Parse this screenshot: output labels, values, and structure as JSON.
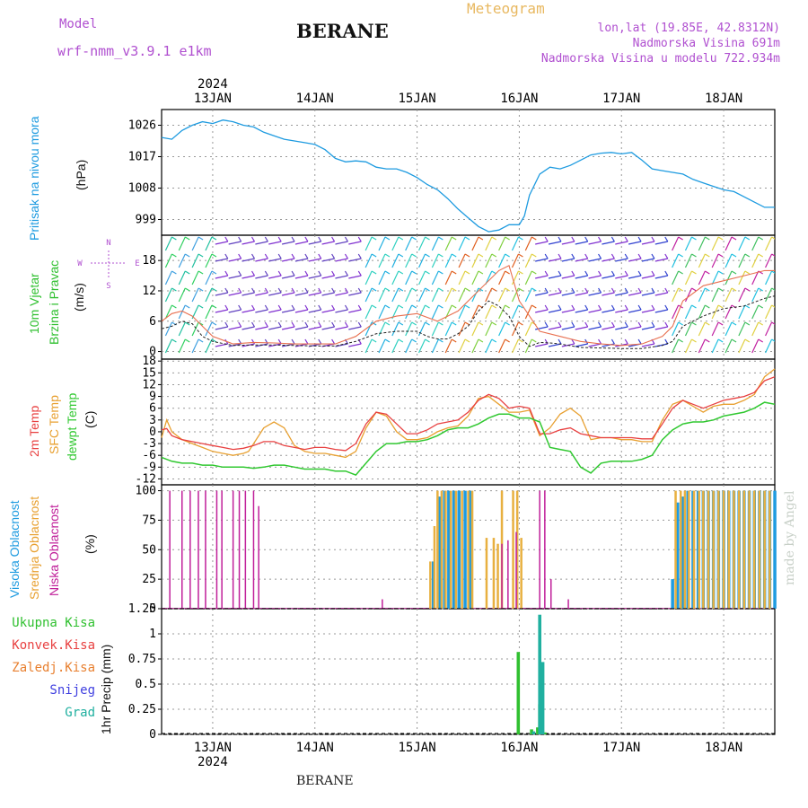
{
  "header": {
    "model_label": "Model",
    "model_name": "wrf-nmm_v3.9.1 e1km",
    "station": "BERANE",
    "product": "Meteogram",
    "coords": "lon,lat (19.85E, 42.8312N)",
    "elevation": "Nadmorska Visina 691m",
    "model_elevation": "Nadmorska Visina u modelu 722.934m"
  },
  "footer": {
    "station": "BERANE",
    "credit": "made by Angel"
  },
  "time_axis": {
    "year": "2024",
    "days": [
      "13JAN",
      "14JAN",
      "15JAN",
      "16JAN",
      "17JAN",
      "18JAN"
    ],
    "start_day": 12.5,
    "end_day": 18.5
  },
  "colors": {
    "pressure": "#1e9be0",
    "temp2m": "#e84040",
    "sfc_temp": "#e8a030",
    "dewpt": "#30c830",
    "high_cloud": "#1e9be0",
    "mid_cloud": "#e8b040",
    "low_cloud": "#c0209a",
    "total_rain": "#30c030",
    "grad": "#20b0a0",
    "wind_speed": "#222222",
    "gust": "#e87050"
  },
  "chart_data": [
    {
      "type": "line",
      "id": "pressure",
      "ylabel_lines": [
        "Pritisak na nivou mora",
        "(hPa)"
      ],
      "yticks": [
        999,
        1008,
        1017,
        1026
      ],
      "ylim": [
        994.5,
        1030.5
      ],
      "series": [
        {
          "key": "pressure",
          "x": [
            12.5,
            12.6,
            12.7,
            12.8,
            12.9,
            13.0,
            13.1,
            13.2,
            13.3,
            13.4,
            13.5,
            13.6,
            13.7,
            13.8,
            13.9,
            14.0,
            14.1,
            14.2,
            14.3,
            14.4,
            14.5,
            14.6,
            14.7,
            14.8,
            14.9,
            15.0,
            15.1,
            15.2,
            15.3,
            15.4,
            15.5,
            15.6,
            15.7,
            15.8,
            15.9,
            16.0,
            16.05,
            16.1,
            16.2,
            16.3,
            16.4,
            16.5,
            16.6,
            16.7,
            16.8,
            16.9,
            17.0,
            17.1,
            17.2,
            17.3,
            17.4,
            17.5,
            17.6,
            17.7,
            17.8,
            17.9,
            18.0,
            18.1,
            18.2,
            18.3,
            18.4,
            18.5
          ],
          "y": [
            1022.5,
            1022,
            1024.5,
            1026,
            1027,
            1026.5,
            1027.5,
            1027,
            1026,
            1025.5,
            1024,
            1023,
            1022,
            1021.5,
            1021,
            1020.5,
            1019,
            1016.5,
            1015.5,
            1015.8,
            1015.5,
            1014,
            1013.5,
            1013.5,
            1012.5,
            1011,
            1009,
            1007.5,
            1005,
            1002,
            999.5,
            997,
            995.5,
            996,
            997.5,
            997.5,
            1000,
            1006,
            1012,
            1014,
            1013.5,
            1014.5,
            1016,
            1017.5,
            1018,
            1018.2,
            1017.8,
            1018.2,
            1016,
            1013.5,
            1013,
            1012.5,
            1012,
            1010.5,
            1009.5,
            1008.5,
            1007.5,
            1007,
            1005.5,
            1004,
            1002.5,
            1002.5
          ]
        }
      ]
    },
    {
      "type": "scatter",
      "id": "wind",
      "ylabel_lines": [
        "10m Vjetar",
        "Brzina i Pravac",
        "(m/s)"
      ],
      "compass": [
        "N",
        "E",
        "S",
        "W"
      ],
      "yticks": [
        0,
        6,
        12,
        18
      ],
      "ylim": [
        -1.5,
        23
      ],
      "series": [
        {
          "key": "wind_speed",
          "x": [
            12.5,
            12.6,
            12.7,
            12.8,
            12.9,
            13.0,
            13.2,
            13.4,
            13.6,
            13.8,
            14.0,
            14.2,
            14.4,
            14.6,
            14.8,
            15.0,
            15.1,
            15.2,
            15.3,
            15.4,
            15.5,
            15.6,
            15.7,
            15.8,
            15.9,
            16.0,
            16.1,
            16.2,
            16.3,
            16.4,
            16.6,
            16.8,
            17.0,
            17.2,
            17.4,
            17.5,
            17.6,
            17.8,
            18.0,
            18.2,
            18.4,
            18.5
          ],
          "y": [
            4.5,
            5,
            6,
            5.5,
            3,
            2,
            1.2,
            1.3,
            1.3,
            1.2,
            1.1,
            1.1,
            2,
            3.5,
            4,
            4,
            3,
            2.5,
            2.5,
            3.5,
            5,
            8,
            10,
            9,
            7,
            3,
            1,
            1.8,
            1.7,
            1.5,
            0.8,
            0.7,
            0.6,
            0.6,
            1.2,
            2,
            5,
            7,
            8.5,
            9,
            10.5,
            11
          ]
        },
        {
          "key": "gust",
          "x": [
            12.5,
            12.6,
            12.7,
            12.8,
            12.9,
            13.0,
            13.2,
            13.4,
            13.6,
            13.8,
            14.0,
            14.2,
            14.4,
            14.6,
            14.8,
            15.0,
            15.2,
            15.4,
            15.6,
            15.8,
            15.9,
            16.0,
            16.2,
            16.4,
            16.6,
            16.8,
            17.0,
            17.2,
            17.4,
            17.5,
            17.6,
            17.8,
            18.0,
            18.2,
            18.4,
            18.5
          ],
          "y": [
            6,
            7.5,
            8,
            7,
            5,
            3,
            1.5,
            1.8,
            1.7,
            1.5,
            1.5,
            1.5,
            3,
            6,
            7,
            7.5,
            6,
            8,
            12,
            16,
            17,
            10,
            4,
            3,
            2,
            1.5,
            1.2,
            1.5,
            3,
            5,
            10,
            13,
            14,
            15,
            16,
            16
          ]
        }
      ]
    },
    {
      "type": "line",
      "id": "temperature",
      "ylabel_lines": [
        "2m Temp",
        "SFC Temp",
        "dewpt Temp",
        "(C)"
      ],
      "yticks": [
        -12,
        -9,
        -6,
        -3,
        0,
        3,
        6,
        9,
        12,
        15,
        18
      ],
      "ylim": [
        -13.5,
        18.5
      ],
      "series": [
        {
          "key": "temp2m",
          "x": [
            12.5,
            12.55,
            12.6,
            12.7,
            12.8,
            12.9,
            13.0,
            13.1,
            13.2,
            13.3,
            13.4,
            13.5,
            13.6,
            13.7,
            13.8,
            13.9,
            14.0,
            14.1,
            14.2,
            14.3,
            14.4,
            14.5,
            14.6,
            14.7,
            14.8,
            14.9,
            15.0,
            15.1,
            15.2,
            15.3,
            15.4,
            15.5,
            15.6,
            15.7,
            15.8,
            15.9,
            16.0,
            16.1,
            16.2,
            16.3,
            16.4,
            16.5,
            16.6,
            16.7,
            16.8,
            16.9,
            17.0,
            17.1,
            17.2,
            17.3,
            17.4,
            17.5,
            17.6,
            17.7,
            17.8,
            17.9,
            18.0,
            18.1,
            18.2,
            18.3,
            18.4,
            18.5
          ],
          "y": [
            0.5,
            0.8,
            -1,
            -2,
            -2.5,
            -3,
            -3.5,
            -4,
            -4.5,
            -4.2,
            -3.5,
            -2.5,
            -2.5,
            -3.5,
            -4,
            -4.5,
            -4,
            -4,
            -4.5,
            -4.8,
            -3,
            2,
            5,
            4.5,
            2,
            -0.5,
            -0.5,
            0.5,
            2,
            2.5,
            3,
            5,
            8,
            9.5,
            8.5,
            6,
            6.5,
            6,
            -0.5,
            -0.5,
            0.5,
            1,
            -0.5,
            -1,
            -1.5,
            -1.5,
            -1.5,
            -1.5,
            -1.8,
            -1.8,
            2,
            6,
            8,
            7,
            6,
            7,
            8,
            8.5,
            9,
            10,
            13,
            14
          ]
        },
        {
          "key": "sfc_temp",
          "x": [
            12.5,
            12.55,
            12.6,
            12.7,
            12.8,
            12.9,
            13.0,
            13.1,
            13.2,
            13.3,
            13.35,
            13.4,
            13.5,
            13.6,
            13.7,
            13.8,
            13.9,
            14.0,
            14.1,
            14.2,
            14.3,
            14.4,
            14.5,
            14.6,
            14.7,
            14.8,
            14.9,
            15.0,
            15.1,
            15.2,
            15.3,
            15.4,
            15.5,
            15.6,
            15.7,
            15.8,
            15.9,
            16.0,
            16.1,
            16.2,
            16.3,
            16.4,
            16.5,
            16.6,
            16.7,
            16.8,
            16.9,
            17.0,
            17.1,
            17.2,
            17.3,
            17.4,
            17.5,
            17.6,
            17.7,
            17.8,
            17.9,
            18.0,
            18.1,
            18.2,
            18.3,
            18.4,
            18.5
          ],
          "y": [
            -1.5,
            3,
            0,
            -2,
            -3,
            -4,
            -5,
            -5.5,
            -6,
            -5.5,
            -5,
            -3,
            1,
            2.5,
            1,
            -3.5,
            -5,
            -5.5,
            -5.5,
            -6,
            -6.5,
            -5,
            1,
            5,
            4,
            0,
            -2,
            -2,
            -1.5,
            0,
            1,
            1.5,
            4,
            8.5,
            9,
            7,
            5,
            5,
            5.5,
            -1,
            1,
            4.5,
            6,
            4,
            -2,
            -1.5,
            -1.5,
            -2,
            -2,
            -2.5,
            -2.5,
            3,
            7,
            8,
            6.5,
            5,
            6.5,
            7,
            7,
            8,
            9.5,
            14,
            16
          ]
        },
        {
          "key": "dewpt",
          "x": [
            12.5,
            12.6,
            12.7,
            12.8,
            12.9,
            13.0,
            13.1,
            13.2,
            13.3,
            13.4,
            13.5,
            13.6,
            13.7,
            13.8,
            13.9,
            14.0,
            14.1,
            14.2,
            14.3,
            14.4,
            14.5,
            14.6,
            14.7,
            14.8,
            14.9,
            15.0,
            15.1,
            15.2,
            15.3,
            15.4,
            15.5,
            15.6,
            15.7,
            15.8,
            15.9,
            16.0,
            16.1,
            16.2,
            16.3,
            16.4,
            16.5,
            16.6,
            16.7,
            16.8,
            16.9,
            17.0,
            17.1,
            17.2,
            17.3,
            17.4,
            17.5,
            17.6,
            17.7,
            17.8,
            17.9,
            18.0,
            18.1,
            18.2,
            18.3,
            18.4,
            18.5
          ],
          "y": [
            -6.5,
            -7.5,
            -8,
            -8,
            -8.5,
            -8.5,
            -9,
            -9,
            -9,
            -9.3,
            -9,
            -8.5,
            -8.5,
            -9,
            -9.5,
            -9.5,
            -9.5,
            -10,
            -10,
            -11,
            -8,
            -5,
            -3,
            -3,
            -2.5,
            -2.5,
            -2,
            -1,
            0.5,
            1,
            1,
            2,
            3.5,
            4.5,
            4.5,
            3.5,
            3.5,
            2.5,
            -4,
            -4.5,
            -5,
            -9,
            -10.5,
            -8,
            -7.5,
            -7.5,
            -7.5,
            -7,
            -6,
            -2,
            0.5,
            2,
            2.5,
            2.5,
            3,
            4,
            4.5,
            5,
            6,
            7.5,
            7
          ]
        }
      ]
    },
    {
      "type": "bar",
      "id": "clouds",
      "ylabel_lines": [
        "Visoka Oblacnost",
        "Srednja Oblacnost",
        "Niska Oblacnost",
        "(%)"
      ],
      "yticks": [
        0,
        25,
        50,
        75,
        100
      ],
      "ylim": [
        0,
        105
      ],
      "series": [
        {
          "key": "low_cloud",
          "x": [
            12.58,
            12.7,
            12.78,
            12.86,
            12.93,
            13.04,
            13.09,
            13.2,
            13.26,
            13.32,
            13.4,
            13.45,
            14.66,
            15.83,
            15.89,
            15.97,
            16.2,
            16.25,
            16.31,
            16.48
          ],
          "y": [
            100,
            100,
            100,
            100,
            100,
            100,
            100,
            100,
            100,
            100,
            100,
            87,
            8,
            55,
            58,
            65,
            100,
            100,
            25,
            8
          ]
        },
        {
          "key": "mid_cloud",
          "x": [
            15.13,
            15.17,
            15.2,
            15.24,
            15.28,
            15.33,
            15.38,
            15.44,
            15.5,
            15.54,
            15.68,
            15.75,
            15.79,
            15.83,
            15.94,
            15.98,
            16.02,
            17.53,
            17.58,
            17.62,
            17.66,
            17.71,
            17.76,
            17.8,
            17.85,
            17.9,
            17.95,
            18.0,
            18.05,
            18.1,
            18.15,
            18.2,
            18.25,
            18.3,
            18.35,
            18.4,
            18.45
          ],
          "y": [
            40,
            70,
            100,
            100,
            100,
            100,
            100,
            100,
            100,
            100,
            60,
            60,
            55,
            100,
            100,
            100,
            60,
            100,
            100,
            100,
            100,
            100,
            100,
            100,
            100,
            100,
            100,
            100,
            100,
            100,
            100,
            100,
            100,
            100,
            100,
            100,
            100
          ]
        },
        {
          "key": "high_cloud",
          "x": [
            15.16,
            15.22,
            15.27,
            15.31,
            15.36,
            15.41,
            15.47,
            15.52,
            17.5,
            17.55,
            17.6,
            17.65,
            17.7,
            17.75,
            17.8,
            17.85,
            17.9,
            17.95,
            18.0,
            18.05,
            18.1,
            18.15,
            18.2,
            18.25,
            18.3,
            18.35,
            18.4,
            18.45,
            18.5
          ],
          "y": [
            40,
            95,
            100,
            100,
            100,
            100,
            100,
            100,
            25,
            90,
            95,
            100,
            100,
            100,
            100,
            100,
            100,
            100,
            100,
            100,
            100,
            100,
            100,
            100,
            100,
            100,
            100,
            100,
            100
          ]
        }
      ]
    },
    {
      "type": "bar",
      "id": "precip",
      "ylabel_lines": [
        "1hr Precip (mm)"
      ],
      "legend": [
        "Ukupna Kisa",
        "Konvek.Kisa",
        "Zaledj.Kisa",
        "Snijeg",
        "Grad"
      ],
      "yticks": [
        0,
        0.25,
        0.5,
        0.75,
        1,
        1.25
      ],
      "ylim": [
        0,
        1.25
      ],
      "series": [
        {
          "key": "total_rain",
          "x": [
            15.99,
            16.12,
            16.18,
            16.2,
            16.25
          ],
          "y": [
            0.82,
            0.05,
            0.07,
            0.3,
            0.02
          ]
        },
        {
          "key": "grad",
          "x": [
            16.14,
            16.2,
            16.23
          ],
          "y": [
            0.03,
            1.19,
            0.72
          ]
        }
      ]
    }
  ]
}
